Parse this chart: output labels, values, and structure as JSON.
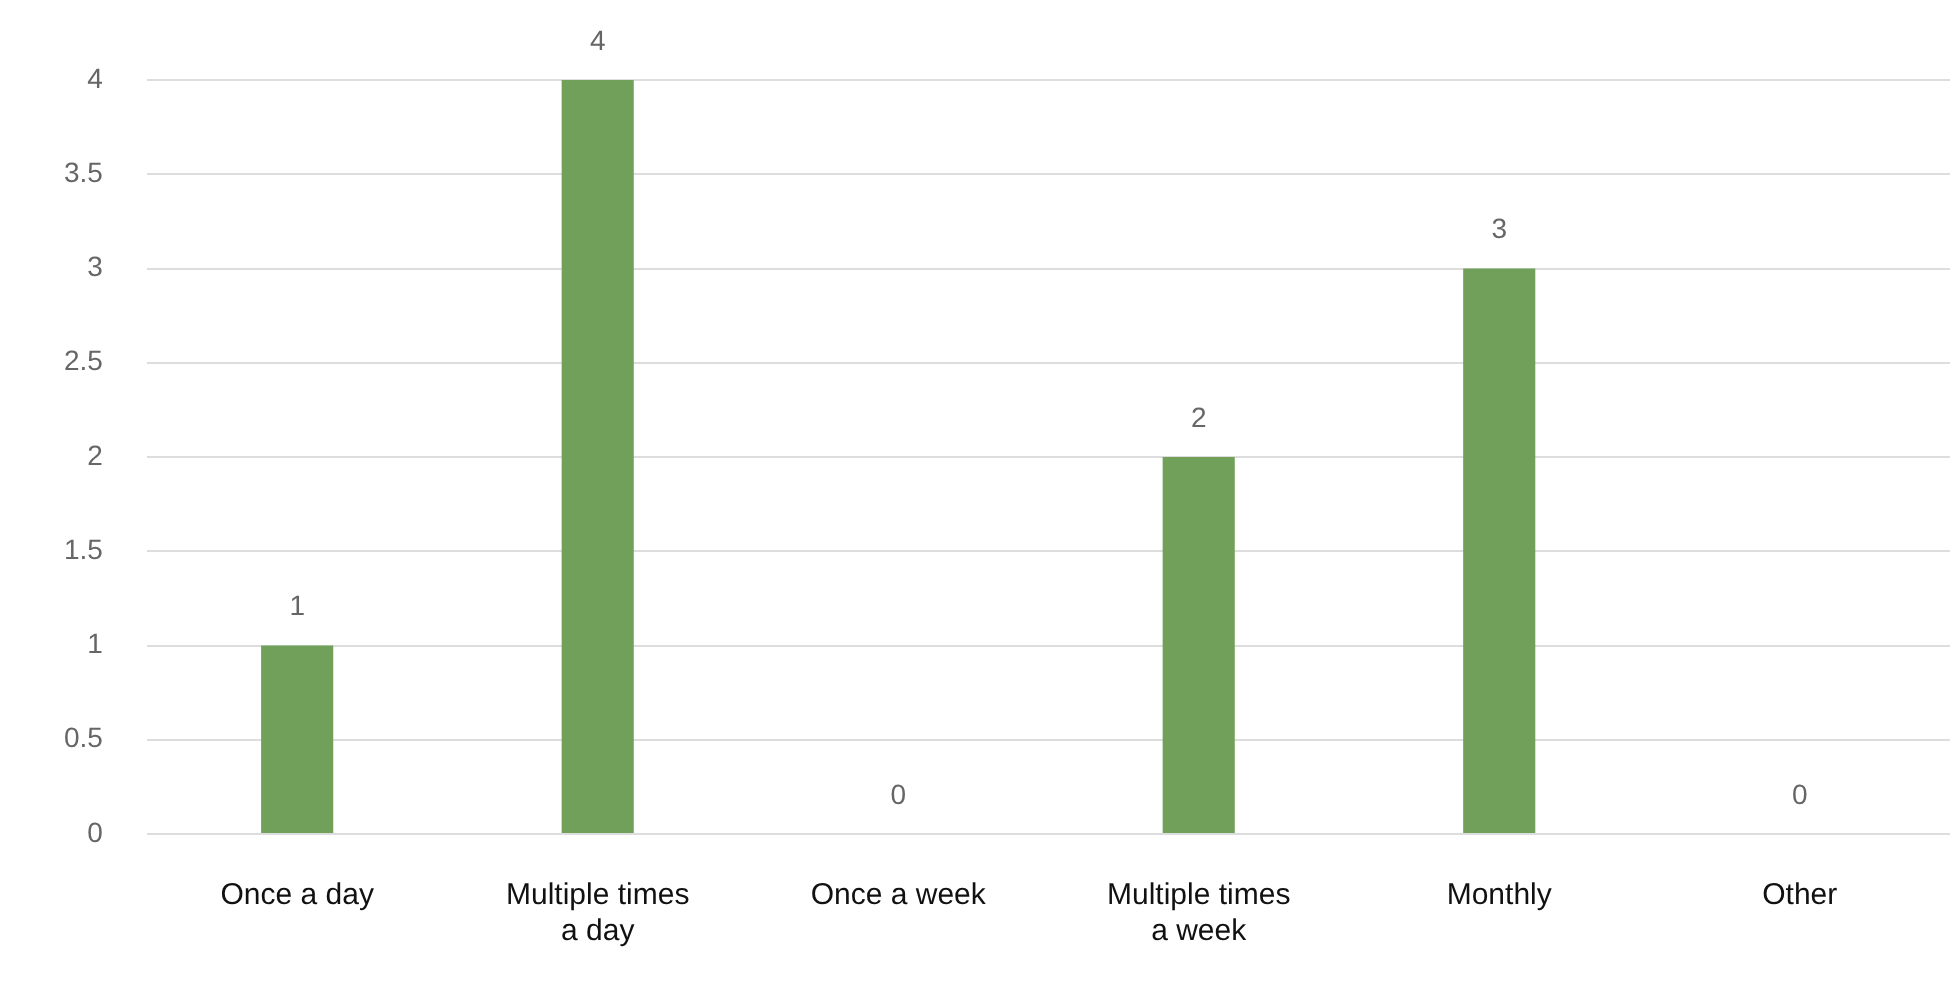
{
  "chart_data": {
    "type": "bar",
    "categories": [
      "Once a day",
      "Multiple times a day",
      "Once a week",
      "Multiple times a week",
      "Monthly",
      "Other"
    ],
    "values": [
      1,
      4,
      0,
      2,
      3,
      0
    ],
    "color": "#70a05a",
    "ylim": [
      0,
      4
    ],
    "yticks": [
      0,
      0.5,
      1,
      1.5,
      2,
      2.5,
      3,
      3.5,
      4
    ],
    "grid": "y",
    "data_labels": true
  }
}
